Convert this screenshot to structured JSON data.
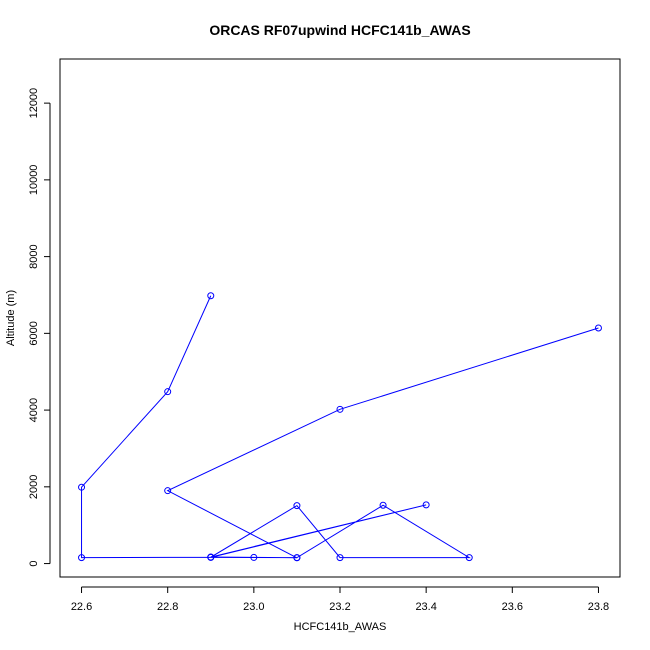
{
  "chart_data": {
    "type": "line",
    "title": "ORCAS RF07upwind HCFC141b_AWAS",
    "xlabel": "HCFC141b_AWAS",
    "ylabel": "Altitude (m)",
    "xlim": [
      22.55,
      23.85
    ],
    "ylim": [
      -350,
      13150
    ],
    "x_ticks": [
      "22.6",
      "22.8",
      "23.0",
      "23.2",
      "23.4",
      "23.6",
      "23.8"
    ],
    "y_ticks": [
      "0",
      "2000",
      "4000",
      "6000",
      "8000",
      "10000",
      "12000"
    ],
    "grid": false,
    "legend": "none",
    "series": [
      {
        "color": "#0000ff",
        "marker": "open-circle",
        "points": [
          {
            "x": 22.9,
            "y": 6980
          },
          {
            "x": 22.8,
            "y": 4480
          },
          {
            "x": 22.6,
            "y": 1990
          },
          {
            "x": 22.6,
            "y": 155
          },
          {
            "x": 22.9,
            "y": 165
          },
          {
            "x": 23.1,
            "y": 1510
          },
          {
            "x": 23.2,
            "y": 155
          },
          {
            "x": 23.5,
            "y": 155
          },
          {
            "x": 23.3,
            "y": 1520
          },
          {
            "x": 23.1,
            "y": 155
          },
          {
            "x": 22.9,
            "y": 160
          },
          {
            "x": 23.4,
            "y": 1530
          },
          {
            "x": 22.9,
            "y": 170
          },
          {
            "x": 23.0,
            "y": 160
          },
          {
            "x": 23.1,
            "y": 150
          },
          {
            "x": 22.8,
            "y": 1900
          },
          {
            "x": 23.2,
            "y": 4020
          },
          {
            "x": 23.8,
            "y": 6140
          }
        ]
      }
    ]
  }
}
